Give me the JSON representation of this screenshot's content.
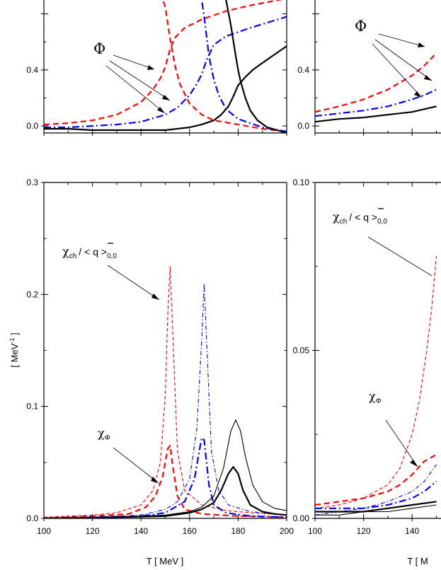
{
  "chart_data": [
    {
      "type": "line",
      "panel": "top-left",
      "xlim": [
        100,
        200
      ],
      "ylim": [
        -0.05,
        1.0
      ],
      "yticks": [
        "0.0",
        "0.4"
      ],
      "annotation": "Φ",
      "series": [
        {
          "color": "#ff0000",
          "style": "dashed",
          "x": [
            100,
            110,
            120,
            130,
            140,
            145,
            148,
            150,
            152,
            154,
            158,
            165,
            175,
            185,
            200
          ],
          "y": [
            0.01,
            0.02,
            0.04,
            0.08,
            0.17,
            0.26,
            0.34,
            0.42,
            0.55,
            0.63,
            0.7,
            0.76,
            0.82,
            0.86,
            0.91
          ]
        },
        {
          "color": "#ff0000",
          "style": "dashed",
          "x": [
            148,
            150,
            152,
            154,
            156,
            160,
            165,
            170,
            180,
            190,
            200
          ],
          "y": [
            0.95,
            0.85,
            0.62,
            0.43,
            0.3,
            0.16,
            0.08,
            0.04,
            0.01,
            -0.02,
            -0.04
          ]
        },
        {
          "color": "#0000ff",
          "style": "dashdot",
          "x": [
            100,
            110,
            120,
            130,
            140,
            150,
            155,
            160,
            163,
            165,
            167,
            170,
            175,
            185,
            200
          ],
          "y": [
            -0.01,
            -0.01,
            0.0,
            0.01,
            0.03,
            0.08,
            0.13,
            0.22,
            0.3,
            0.37,
            0.47,
            0.58,
            0.64,
            0.7,
            0.78
          ]
        },
        {
          "color": "#0000ff",
          "style": "dashdot",
          "x": [
            164,
            165,
            166,
            167,
            168,
            170,
            172,
            175,
            180,
            190,
            200
          ],
          "y": [
            0.98,
            0.9,
            0.78,
            0.64,
            0.5,
            0.33,
            0.22,
            0.12,
            0.05,
            -0.01,
            -0.04
          ]
        },
        {
          "color": "#000000",
          "style": "solid",
          "x": [
            100,
            110,
            120,
            130,
            140,
            150,
            160,
            165,
            170,
            173,
            176,
            178,
            180,
            183,
            186,
            190,
            195,
            200
          ],
          "y": [
            -0.02,
            -0.02,
            -0.03,
            -0.03,
            -0.03,
            -0.03,
            -0.01,
            0.01,
            0.04,
            0.08,
            0.14,
            0.21,
            0.29,
            0.35,
            0.4,
            0.45,
            0.51,
            0.57
          ]
        },
        {
          "color": "#000000",
          "style": "solid",
          "x": [
            173,
            175,
            177,
            179,
            180,
            181,
            183,
            185,
            188,
            192,
            196,
            200
          ],
          "y": [
            0.98,
            0.9,
            0.72,
            0.5,
            0.4,
            0.32,
            0.2,
            0.11,
            0.04,
            -0.01,
            -0.03,
            -0.05
          ]
        }
      ]
    },
    {
      "type": "line",
      "panel": "top-right",
      "xlim": [
        100,
        200
      ],
      "ylim": [
        -0.05,
        1.0
      ],
      "yticks": [
        "0.0",
        "0.4"
      ],
      "annotation": "Φ",
      "series": [
        {
          "color": "#ff0000",
          "style": "dashed",
          "x": [
            100,
            110,
            120,
            130,
            140,
            145,
            150
          ],
          "y": [
            0.1,
            0.14,
            0.19,
            0.26,
            0.36,
            0.43,
            0.52
          ]
        },
        {
          "color": "#0000ff",
          "style": "dashdot",
          "x": [
            100,
            110,
            120,
            130,
            140,
            145,
            150
          ],
          "y": [
            0.07,
            0.09,
            0.11,
            0.14,
            0.19,
            0.22,
            0.26
          ]
        },
        {
          "color": "#000000",
          "style": "solid",
          "x": [
            100,
            110,
            120,
            130,
            140,
            145,
            150
          ],
          "y": [
            0.03,
            0.05,
            0.06,
            0.08,
            0.1,
            0.12,
            0.14
          ]
        }
      ]
    },
    {
      "type": "line",
      "panel": "bottom-left",
      "xlabel": "T  [ MeV ]",
      "ylabel": "[ MeV",
      "ylabel_sup": "-1",
      "xlim": [
        100,
        200
      ],
      "ylim": [
        0.0,
        0.3
      ],
      "xticks": [
        "100",
        "120",
        "140",
        "160",
        "180",
        "200"
      ],
      "yticks": [
        "0.0",
        "0.1",
        "0.2",
        "0.3"
      ],
      "annotations": {
        "chi_ch_sub": "ch",
        "chi_ch_tail": "/ <",
        "chi_ch_end": "q >",
        "chi_ch_index": "0,0",
        "chi_phi_sub": "Φ"
      },
      "series": [
        {
          "color": "#ff0000",
          "style": "dashed-thin",
          "x": [
            100,
            110,
            120,
            130,
            140,
            145,
            148,
            150,
            151,
            152,
            153,
            155,
            158,
            165,
            175,
            185,
            200
          ],
          "y": [
            0.001,
            0.002,
            0.003,
            0.005,
            0.012,
            0.025,
            0.05,
            0.11,
            0.18,
            0.225,
            0.17,
            0.06,
            0.025,
            0.012,
            0.007,
            0.005,
            0.003
          ]
        },
        {
          "color": "#ff0000",
          "style": "dashed",
          "x": [
            100,
            120,
            135,
            142,
            146,
            149,
            151,
            152,
            153,
            155,
            158,
            165,
            180,
            200
          ],
          "y": [
            0.0,
            0.002,
            0.004,
            0.01,
            0.02,
            0.038,
            0.062,
            0.065,
            0.048,
            0.02,
            0.008,
            0.004,
            0.002,
            0.001
          ]
        },
        {
          "color": "#0000ff",
          "style": "dashdot-thin",
          "x": [
            100,
            120,
            140,
            150,
            155,
            160,
            163,
            165,
            166,
            167,
            169,
            172,
            176,
            185,
            200
          ],
          "y": [
            0.0,
            0.001,
            0.003,
            0.008,
            0.015,
            0.035,
            0.08,
            0.16,
            0.21,
            0.16,
            0.06,
            0.025,
            0.012,
            0.006,
            0.003
          ]
        },
        {
          "color": "#0000ff",
          "style": "dashdot",
          "x": [
            100,
            120,
            140,
            150,
            158,
            162,
            164,
            165,
            166,
            167,
            168,
            170,
            175,
            185,
            200
          ],
          "y": [
            0.0,
            0.001,
            0.002,
            0.005,
            0.015,
            0.035,
            0.06,
            0.072,
            0.07,
            0.05,
            0.03,
            0.012,
            0.005,
            0.002,
            0.001
          ]
        },
        {
          "color": "#000000",
          "style": "solid-thin",
          "x": [
            100,
            130,
            150,
            160,
            165,
            170,
            174,
            177,
            179,
            181,
            183,
            186,
            190,
            195,
            200
          ],
          "y": [
            0.0,
            0.001,
            0.003,
            0.006,
            0.01,
            0.02,
            0.045,
            0.078,
            0.088,
            0.078,
            0.055,
            0.03,
            0.015,
            0.009,
            0.007
          ]
        },
        {
          "color": "#000000",
          "style": "solid",
          "x": [
            100,
            130,
            150,
            160,
            165,
            170,
            173,
            176,
            178,
            180,
            182,
            185,
            190,
            195,
            200
          ],
          "y": [
            0.0,
            0.001,
            0.002,
            0.005,
            0.008,
            0.014,
            0.025,
            0.04,
            0.046,
            0.04,
            0.025,
            0.012,
            0.006,
            0.004,
            0.003
          ]
        }
      ]
    },
    {
      "type": "line",
      "panel": "bottom-right",
      "xlabel": "T  [ M",
      "xlim": [
        100,
        200
      ],
      "ylim": [
        0.0,
        0.1
      ],
      "xticks": [
        "100",
        "120",
        "140"
      ],
      "yticks": [
        "0.00",
        "0.05",
        "0.10"
      ],
      "annotations": {
        "chi_ch_sub": "ch",
        "chi_ch_tail": "/ <",
        "chi_ch_end": "q >",
        "chi_ch_index": "0,0",
        "chi_phi_sub": "Φ"
      },
      "series": [
        {
          "color": "#ff0000",
          "style": "dashed-thin",
          "x": [
            100,
            110,
            120,
            130,
            135,
            140,
            143,
            146,
            148,
            150
          ],
          "y": [
            0.003,
            0.004,
            0.006,
            0.01,
            0.015,
            0.025,
            0.035,
            0.05,
            0.062,
            0.078
          ]
        },
        {
          "color": "#ff0000",
          "style": "dashed",
          "x": [
            100,
            110,
            120,
            130,
            135,
            140,
            145,
            150
          ],
          "y": [
            0.004,
            0.005,
            0.006,
            0.008,
            0.01,
            0.013,
            0.017,
            0.019
          ]
        },
        {
          "color": "#0000ff",
          "style": "dashdot-thin",
          "x": [
            100,
            110,
            120,
            130,
            140,
            145,
            150
          ],
          "y": [
            0.001,
            0.002,
            0.003,
            0.005,
            0.008,
            0.011,
            0.016
          ]
        },
        {
          "color": "#0000ff",
          "style": "dashdot",
          "x": [
            100,
            110,
            120,
            130,
            140,
            145,
            150
          ],
          "y": [
            0.003,
            0.003,
            0.003,
            0.004,
            0.006,
            0.008,
            0.011
          ]
        },
        {
          "color": "#000000",
          "style": "solid-thin",
          "x": [
            100,
            110,
            120,
            130,
            140,
            150
          ],
          "y": [
            0.001,
            0.001,
            0.002,
            0.002,
            0.003,
            0.004
          ]
        },
        {
          "color": "#000000",
          "style": "solid",
          "x": [
            100,
            110,
            120,
            130,
            140,
            150
          ],
          "y": [
            0.002,
            0.002,
            0.002,
            0.003,
            0.004,
            0.005
          ]
        }
      ]
    }
  ]
}
